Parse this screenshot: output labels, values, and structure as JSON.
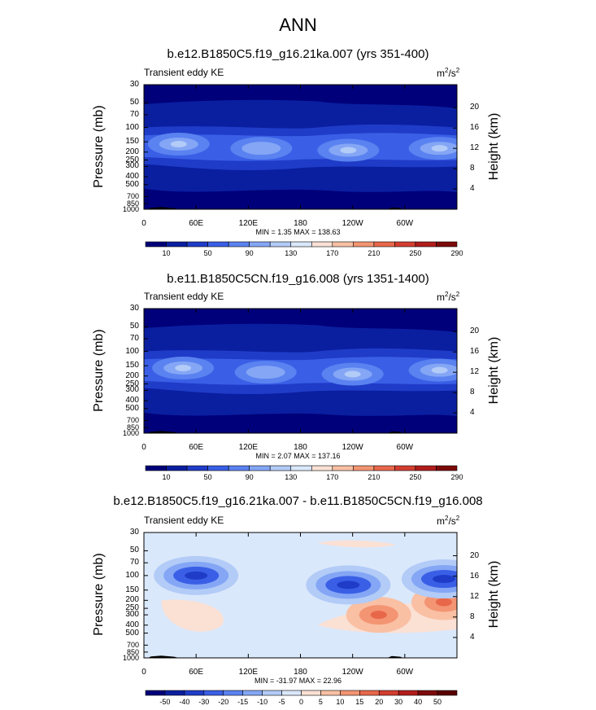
{
  "title": "ANN",
  "chart_data": [
    {
      "type": "heatmap",
      "title": "b.e12.B1850C5.f19_g16.21ka.007 (yrs 351-400)",
      "variable": "Transient eddy KE",
      "units_base": "m",
      "units_exp1": "2",
      "units_mid": "/s",
      "units_exp2": "2",
      "ylabel": "Pressure (mb)",
      "ylabel_right": "Height (km)",
      "x_ticks": [
        "0",
        "60E",
        "120E",
        "180",
        "120W",
        "60W"
      ],
      "y_ticks": [
        "30",
        "50",
        "70",
        "100",
        "150",
        "200",
        "250",
        "300",
        "400",
        "500",
        "700",
        "850",
        "1000"
      ],
      "y2_ticks": [
        "20",
        "16",
        "12",
        "8",
        "4"
      ],
      "stats": "MIN =   1.35  MAX = 138.63",
      "colorbar_labels": [
        "10",
        "50",
        "90",
        "130",
        "170",
        "210",
        "250",
        "290"
      ],
      "colors": [
        "#00007a",
        "#0a1ea0",
        "#1f3cc8",
        "#3a5fe6",
        "#5a82f0",
        "#84a6f5",
        "#b2cbf7",
        "#dae8fb",
        "#fbe0d4",
        "#f9c0a4",
        "#f39472",
        "#e8674a",
        "#d33e30",
        "#b11d1c",
        "#7d0a0a"
      ],
      "maxima": [
        {
          "lon": 40,
          "p": 160,
          "level": 7
        },
        {
          "lon": 135,
          "p": 180,
          "level": 6
        },
        {
          "lon": 235,
          "p": 190,
          "level": 7
        },
        {
          "lon": 340,
          "p": 180,
          "level": 7
        }
      ]
    },
    {
      "type": "heatmap",
      "title": "b.e11.B1850C5CN.f19_g16.008 (yrs 1351-1400)",
      "variable": "Transient eddy KE",
      "units_base": "m",
      "units_exp1": "2",
      "units_mid": "/s",
      "units_exp2": "2",
      "ylabel": "Pressure (mb)",
      "ylabel_right": "Height (km)",
      "x_ticks": [
        "0",
        "60E",
        "120E",
        "180",
        "120W",
        "60W"
      ],
      "y_ticks": [
        "30",
        "50",
        "70",
        "100",
        "150",
        "200",
        "250",
        "300",
        "400",
        "500",
        "700",
        "850",
        "1000"
      ],
      "y2_ticks": [
        "20",
        "16",
        "12",
        "8",
        "4"
      ],
      "stats": "MIN =   2.07  MAX = 137.16",
      "colorbar_labels": [
        "10",
        "50",
        "90",
        "130",
        "170",
        "210",
        "250",
        "290"
      ],
      "colors": [
        "#00007a",
        "#0a1ea0",
        "#1f3cc8",
        "#3a5fe6",
        "#5a82f0",
        "#84a6f5",
        "#b2cbf7",
        "#dae8fb",
        "#fbe0d4",
        "#f9c0a4",
        "#f39472",
        "#e8674a",
        "#d33e30",
        "#b11d1c",
        "#7d0a0a"
      ],
      "maxima": [
        {
          "lon": 45,
          "p": 160,
          "level": 7
        },
        {
          "lon": 140,
          "p": 180,
          "level": 6
        },
        {
          "lon": 240,
          "p": 190,
          "level": 7
        },
        {
          "lon": 340,
          "p": 170,
          "level": 7
        }
      ]
    },
    {
      "type": "heatmap",
      "title": "b.e12.B1850C5.f19_g16.21ka.007 - b.e11.B1850C5CN.f19_g16.008",
      "variable": "Transient eddy KE",
      "units_base": "m",
      "units_exp1": "2",
      "units_mid": "/s",
      "units_exp2": "2",
      "ylabel": "Pressure (mb)",
      "ylabel_right": "Height (km)",
      "x_ticks": [
        "0",
        "60E",
        "120E",
        "180",
        "120W",
        "60W"
      ],
      "y_ticks": [
        "30",
        "50",
        "70",
        "100",
        "150",
        "200",
        "250",
        "300",
        "400",
        "500",
        "700",
        "850",
        "1000"
      ],
      "y2_ticks": [
        "20",
        "16",
        "12",
        "8",
        "4"
      ],
      "stats": "MIN = -31.97  MAX =  22.96",
      "colorbar_labels": [
        "-50",
        "-40",
        "-30",
        "-20",
        "-15",
        "-10",
        "-5",
        "0",
        "5",
        "10",
        "15",
        "20",
        "30",
        "40",
        "50"
      ],
      "colors": [
        "#00007a",
        "#0a1ea0",
        "#1f3cc8",
        "#3a5fe6",
        "#5a82f0",
        "#84a6f5",
        "#b2cbf7",
        "#dae8fb",
        "#fbe0d4",
        "#f9c0a4",
        "#f39472",
        "#e8674a",
        "#d33e30",
        "#b11d1c",
        "#7d0a0a",
        "#5a0000"
      ],
      "negative_centers": [
        {
          "lon": 60,
          "p": 100
        },
        {
          "lon": 235,
          "p": 130
        },
        {
          "lon": 345,
          "p": 110
        }
      ],
      "positive_centers": [
        {
          "lon": 270,
          "p": 300
        },
        {
          "lon": 345,
          "p": 210
        }
      ]
    }
  ]
}
